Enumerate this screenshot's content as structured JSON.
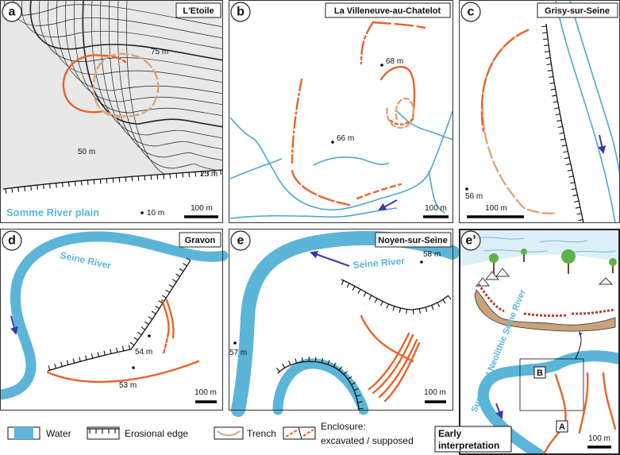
{
  "panels": [
    {
      "label": "a",
      "title": "L'Etoile",
      "annotations": [
        "75 m",
        "50 m",
        "25 m",
        "10 m"
      ],
      "place": "Somme River plain",
      "scale": "100 m"
    },
    {
      "label": "b",
      "title": "La Villeneuve-au-Chatelot",
      "annotations": [
        "68 m",
        "66 m"
      ],
      "scale": "100 m"
    },
    {
      "label": "c",
      "title": "Grisy-sur-Seine",
      "annotations": [
        "56 m"
      ],
      "scale": "100 m"
    },
    {
      "label": "d",
      "title": "Gravon",
      "river": "Seine River",
      "annotations": [
        "54 m",
        "53 m"
      ],
      "scale": "100 m"
    },
    {
      "label": "e",
      "title": "Noyen-sur-Seine",
      "river": "Seine River",
      "annotations": [
        "58 m",
        "57 m"
      ],
      "scale": "100 m"
    },
    {
      "label": "e’",
      "river": "Supposed Neolithic Seine River",
      "boxes": [
        "B",
        "A"
      ],
      "scale": "100 m"
    }
  ],
  "legend": {
    "water": "Water",
    "erosional_edge": "Erosional edge",
    "trench": "Trench",
    "enclosure": "Enclosure:",
    "enclosure_detail": "excavated / supposed"
  },
  "early_interpretation": [
    "Early",
    "interpretation"
  ]
}
